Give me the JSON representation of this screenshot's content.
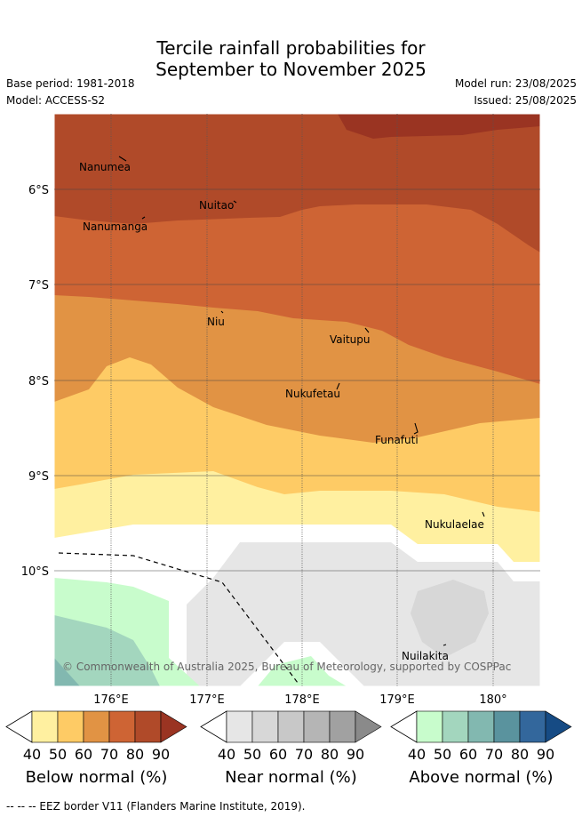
{
  "header": {
    "title_line1": "Tercile rainfall probabilities for",
    "title_line2": "September to November 2025",
    "base_period": "Base period: 1981-2018",
    "model": "Model: ACCESS-S2",
    "model_run": "Model run: 23/08/2025",
    "issued": "Issued: 25/08/2025"
  },
  "map": {
    "lat_labels": [
      "6°S",
      "7°S",
      "8°S",
      "9°S",
      "10°S"
    ],
    "lon_labels": [
      "176°E",
      "177°E",
      "178°E",
      "179°E",
      "180°"
    ],
    "places": [
      "Nanumea",
      "Nuitao",
      "Nanumanga",
      "Niu",
      "Vaitupu",
      "Nukufetau",
      "Funafuti",
      "Nukulaelae",
      "Nuilakita"
    ],
    "copyright": "© Commonwealth of Australia 2025, Bureau of Meteorology, supported by COSPPac"
  },
  "legends": [
    {
      "label": "Below normal (%)",
      "ticks": [
        "40",
        "50",
        "60",
        "70",
        "80",
        "90"
      ],
      "colors": [
        "#fff0a0",
        "#fecb65",
        "#e19344",
        "#ce6434",
        "#b04a29",
        "#9a3422"
      ]
    },
    {
      "label": "Near normal (%)",
      "ticks": [
        "40",
        "50",
        "60",
        "70",
        "80",
        "90"
      ],
      "colors": [
        "#e6e6e6",
        "#d7d7d7",
        "#c8c8c8",
        "#b5b5b5",
        "#a1a1a1",
        "#8a8a8a"
      ]
    },
    {
      "label": "Above normal (%)",
      "ticks": [
        "40",
        "50",
        "60",
        "70",
        "80",
        "90"
      ],
      "colors": [
        "#c8fccc",
        "#a3d6be",
        "#82b8b0",
        "#5a939e",
        "#33679c",
        "#164b84"
      ]
    }
  ],
  "footer": "--  --  -- EEZ border V11 (Flanders Marine Institute, 2019)."
}
